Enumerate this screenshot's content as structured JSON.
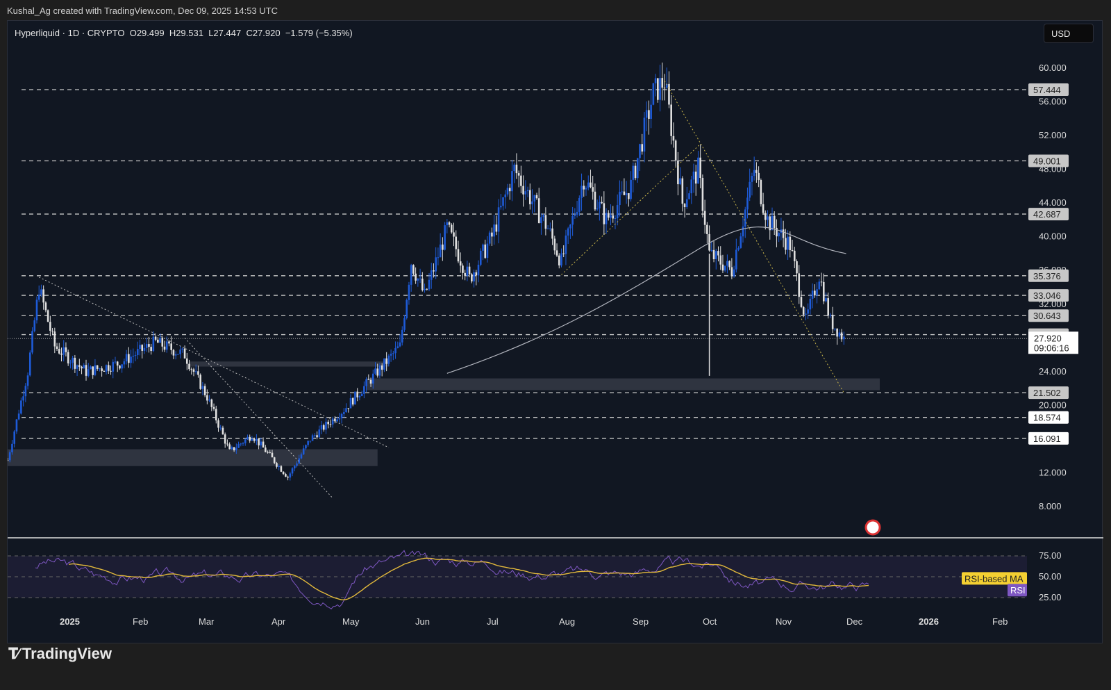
{
  "header": {
    "attribution": "Kushal_Ag created with TradingView.com, Dec 09, 2025 14:53 UTC"
  },
  "legend": {
    "symbol": "Hyperliquid · 1D · CRYPTO",
    "open": "O29.499",
    "high": "H29.531",
    "low": "L27.447",
    "close": "C27.920",
    "change": "−1.579 (−5.35%)"
  },
  "currency_button": "USD",
  "brand": "TradingView",
  "price_axis": {
    "ticks": [
      "60.000",
      "56.000",
      "52.000",
      "48.000",
      "44.000",
      "40.000",
      "36.000",
      "32.000",
      "24.000",
      "20.000",
      "12.000",
      "8.000"
    ],
    "level_labels": [
      {
        "value": "57.444",
        "style": "gray"
      },
      {
        "value": "49.001",
        "style": "gray"
      },
      {
        "value": "42.687",
        "style": "gray"
      },
      {
        "value": "35.376",
        "style": "gray"
      },
      {
        "value": "33.046",
        "style": "gray"
      },
      {
        "value": "30.643",
        "style": "gray"
      },
      {
        "value": "28.391",
        "style": "gray"
      },
      {
        "value": "21.502",
        "style": "gray"
      },
      {
        "value": "18.574",
        "style": "white"
      },
      {
        "value": "16.091",
        "style": "white"
      }
    ],
    "last_price": "27.920",
    "countdown": "09:06:16"
  },
  "rsi_axis": {
    "ticks": [
      "75.00",
      "50.00",
      "25.00"
    ],
    "ma_label": "RSI-based MA",
    "rsi_label": "RSI"
  },
  "time_axis": {
    "labels": [
      "2025",
      "Feb",
      "Mar",
      "Apr",
      "May",
      "Jun",
      "Jul",
      "Aug",
      "Sep",
      "Oct",
      "Nov",
      "Dec",
      "2026",
      "Feb"
    ]
  },
  "colors": {
    "background": "#111722",
    "up_candle": "#1e5bd8",
    "down_candle": "#e0e0e0",
    "rsi_line": "#7e57c2",
    "rsi_ma": "#e2b93b",
    "sma": "#b2b5be",
    "trendline_yellow": "#c8b44a"
  },
  "chart_data": {
    "type": "candlestick",
    "title": "Hyperliquid · 1D · CRYPTO",
    "ylabel": "USD",
    "ylim": [
      6,
      62
    ],
    "x_range": [
      "2024-12-01",
      "2026-02-20"
    ],
    "ohlc_last": {
      "open": 29.499,
      "high": 29.531,
      "low": 27.447,
      "close": 27.92,
      "change": -1.579,
      "change_pct": -5.35
    },
    "horizontal_levels": [
      57.444,
      49.001,
      42.687,
      35.376,
      33.046,
      30.643,
      28.391,
      21.502,
      18.574,
      16.091
    ],
    "zones": [
      {
        "from": "2024-12-01",
        "to": "2025-05-15",
        "low": 12.8,
        "high": 14.8
      },
      {
        "from": "2025-05-10",
        "to": "2025-12-25",
        "low": 21.8,
        "high": 23.2
      },
      {
        "from": "2025-02-20",
        "to": "2025-05-20",
        "low": 24.6,
        "high": 25.2
      }
    ],
    "approx_close_path": [
      [
        "2024-12-01",
        13.5
      ],
      [
        "2024-12-10",
        24
      ],
      [
        "2024-12-15",
        34
      ],
      [
        "2024-12-22",
        27
      ],
      [
        "2025-01-05",
        24
      ],
      [
        "2025-01-20",
        25
      ],
      [
        "2025-02-05",
        27.5
      ],
      [
        "2025-02-18",
        26
      ],
      [
        "2025-02-28",
        21
      ],
      [
        "2025-03-10",
        14.5
      ],
      [
        "2025-03-20",
        16.5
      ],
      [
        "2025-04-05",
        11.5
      ],
      [
        "2025-04-15",
        16
      ],
      [
        "2025-04-30",
        19.5
      ],
      [
        "2025-05-15",
        24
      ],
      [
        "2025-05-25",
        27
      ],
      [
        "2025-05-30",
        37
      ],
      [
        "2025-06-05",
        33
      ],
      [
        "2025-06-15",
        41
      ],
      [
        "2025-06-25",
        35
      ],
      [
        "2025-07-05",
        40
      ],
      [
        "2025-07-15",
        48
      ],
      [
        "2025-07-30",
        41
      ],
      [
        "2025-08-05",
        37
      ],
      [
        "2025-08-15",
        47
      ],
      [
        "2025-08-25",
        42
      ],
      [
        "2025-09-05",
        46
      ],
      [
        "2025-09-15",
        57
      ],
      [
        "2025-09-20",
        58.5
      ],
      [
        "2025-09-28",
        44
      ],
      [
        "2025-10-05",
        48
      ],
      [
        "2025-10-10",
        38
      ],
      [
        "2025-10-20",
        36
      ],
      [
        "2025-10-30",
        48
      ],
      [
        "2025-11-05",
        42
      ],
      [
        "2025-11-15",
        39
      ],
      [
        "2025-11-22",
        30
      ],
      [
        "2025-11-28",
        35.5
      ],
      [
        "2025-12-03",
        30
      ],
      [
        "2025-12-09",
        27.92
      ]
    ],
    "indicators": {
      "sma": "long moving average rising from ~24 (Jun) to ~39 (Nov) then flattening",
      "rsi": {
        "overbought": 75,
        "mid": 50,
        "oversold": 25,
        "current_approx": 33,
        "ma_current_approx": 40
      }
    }
  }
}
